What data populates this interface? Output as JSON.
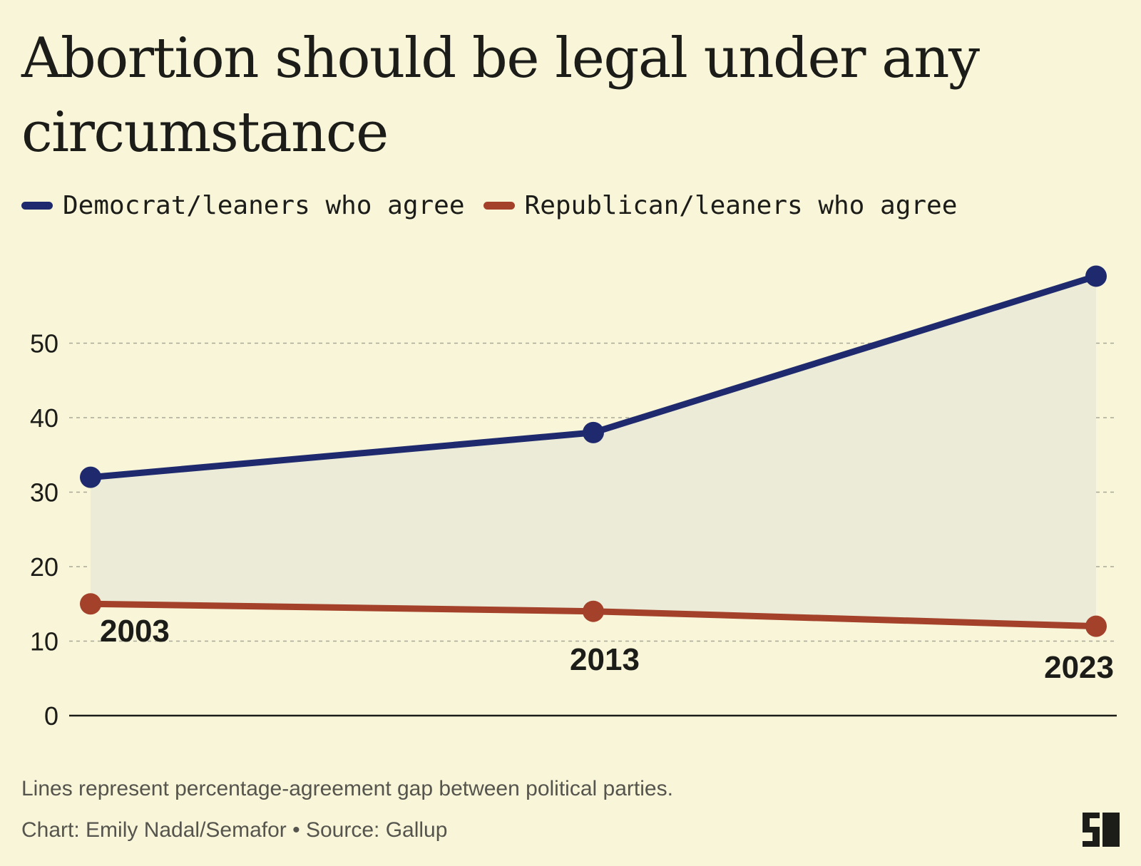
{
  "chart_data": {
    "type": "line",
    "title": "Abortion should be legal under any circumstance",
    "categories": [
      "2003",
      "2013",
      "2023"
    ],
    "x": [
      2003,
      2013,
      2023
    ],
    "series": [
      {
        "name": "Democrat/leaners who agree",
        "color": "#1f2a6e",
        "values": [
          32,
          38,
          59
        ]
      },
      {
        "name": "Republican/leaners who agree",
        "color": "#a3412a",
        "values": [
          15,
          14,
          12
        ]
      }
    ],
    "y_ticks": [
      0,
      10,
      20,
      30,
      40,
      50
    ],
    "ylim": [
      0,
      60
    ],
    "xlabel": "",
    "ylabel": "",
    "grid": true,
    "gap_fill": true,
    "legend_position": "top-left"
  },
  "footer": {
    "note": "Lines represent percentage-agreement gap between political parties.",
    "credit": "Chart: Emily Nadal/Semafor • Source: Gallup",
    "logo": "semafor-s-logo"
  },
  "colors": {
    "background": "#f8f5d9",
    "gap_fill": "#ecebd7",
    "grid": "#a9a89a",
    "axis": "#1b1b18"
  }
}
